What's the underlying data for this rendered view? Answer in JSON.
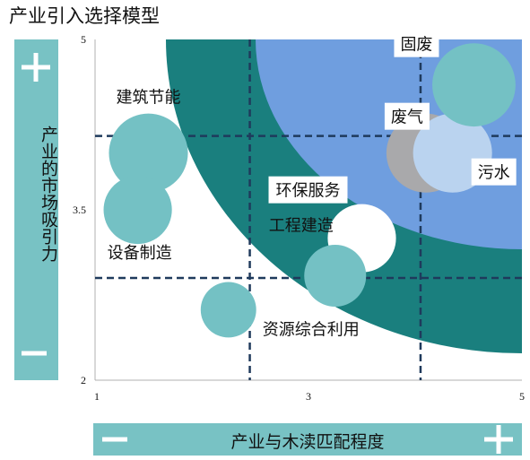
{
  "title": "产业引入选择模型",
  "y_axis_label": "产业的市场吸引力",
  "x_axis_label": "产业与木渎匹配程度",
  "colors": {
    "bar": "#78c2c4",
    "outer_band": "#1a7f7e",
    "inner_zone": "#6f9edf",
    "bubble": "#74c1c4",
    "bubble_white": "#ffffff",
    "bubble_gray": "#a9a9ab",
    "bubble_light": "#bad3ef",
    "dash": "#1f3a5c"
  },
  "icons": {
    "y_top": "plus-icon",
    "y_bottom": "minus-icon",
    "x_left": "minus-icon",
    "x_right": "plus-icon"
  },
  "chart_data": {
    "type": "scatter",
    "title": "产业引入选择模型",
    "xlabel": "产业与木渎匹配程度",
    "ylabel": "产业的市场吸引力",
    "xlim": [
      1,
      5
    ],
    "ylim": [
      2,
      5
    ],
    "xticks": [
      "1",
      "3",
      "5"
    ],
    "yticks": [
      "2",
      "3.5",
      "5"
    ],
    "divider_x": [
      2.45,
      4.05
    ],
    "divider_y": [
      2.9,
      4.15
    ],
    "points": [
      {
        "label": "建筑节能",
        "x": 1.5,
        "y": 4.0,
        "size": 0.37,
        "color": "bubble"
      },
      {
        "label": "设备制造",
        "x": 1.4,
        "y": 3.5,
        "size": 0.32,
        "color": "bubble"
      },
      {
        "label": "资源综合利用",
        "x": 2.25,
        "y": 2.62,
        "size": 0.26,
        "color": "bubble"
      },
      {
        "label": "环保服务",
        "x": 3.5,
        "y": 3.25,
        "size": 0.32,
        "color": "bubble_white"
      },
      {
        "label": "工程建造",
        "x": 3.25,
        "y": 2.92,
        "size": 0.29,
        "color": "bubble"
      },
      {
        "label": "废气",
        "x": 4.1,
        "y": 4.0,
        "size": 0.37,
        "color": "bubble_gray"
      },
      {
        "label": "污水",
        "x": 4.35,
        "y": 4.0,
        "size": 0.37,
        "color": "bubble_light"
      },
      {
        "label": "固废",
        "x": 4.55,
        "y": 4.6,
        "size": 0.39,
        "color": "bubble"
      }
    ]
  }
}
